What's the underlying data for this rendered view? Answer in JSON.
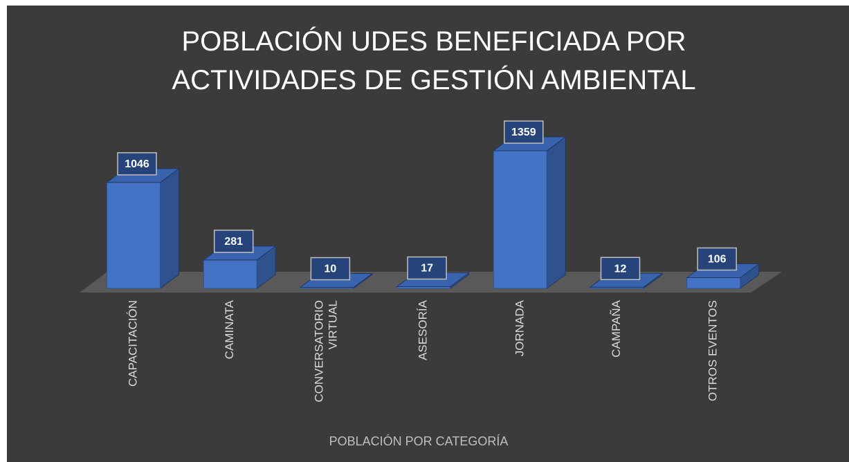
{
  "chart_data": {
    "type": "bar3d",
    "title": "POBLACIÓN UDES BENEFICIADA POR ACTIVIDADES DE GESTIÓN AMBIENTAL",
    "x_label": "POBLACIÓN POR CATEGORÍA",
    "categories": [
      "CAPACITACIÓN",
      "CAMINATA",
      "CONVERSATORIO VIRTUAL",
      "ASESORÍA",
      "JORNADA",
      "CAMPAÑA",
      "OTROS EVENTOS"
    ],
    "values": [
      1046,
      281,
      10,
      17,
      1359,
      12,
      106
    ],
    "color": "#4472c4"
  }
}
